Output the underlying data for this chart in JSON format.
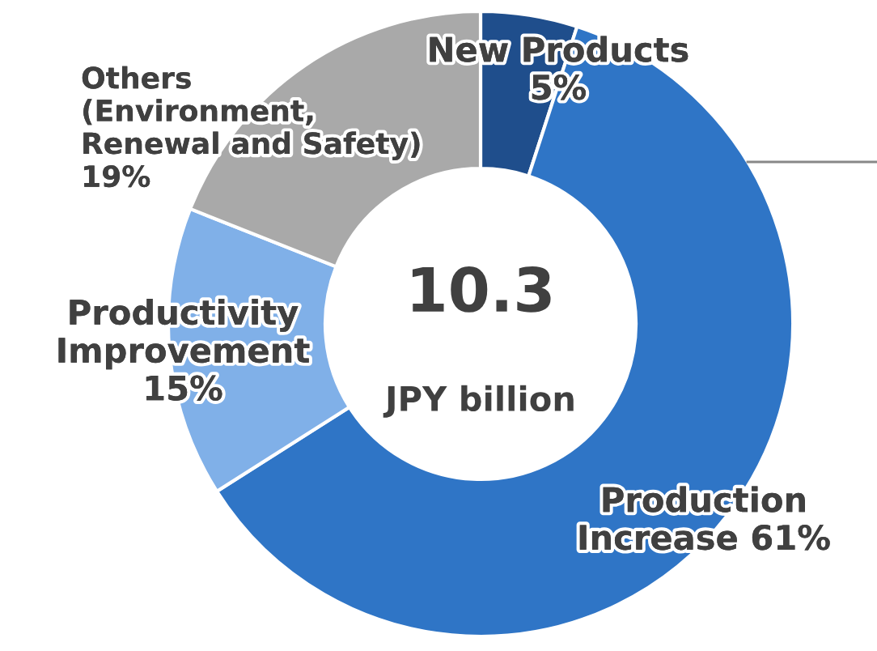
{
  "chart_data": {
    "type": "donut",
    "title": "10.3",
    "subtitle": "JPY billion",
    "categories": [
      "New Products",
      "Production\nIncrease",
      "Productivity\nImprovement",
      "Others\n(Environment,\nRenewal and Safety)"
    ],
    "values": [
      5,
      61,
      15,
      19
    ],
    "value_labels": [
      "5%",
      "61%",
      "15%",
      "19%"
    ],
    "colors": [
      "#1f4e8c",
      "#2f75c6",
      "#80b0e8",
      "#a9a9a9"
    ]
  }
}
